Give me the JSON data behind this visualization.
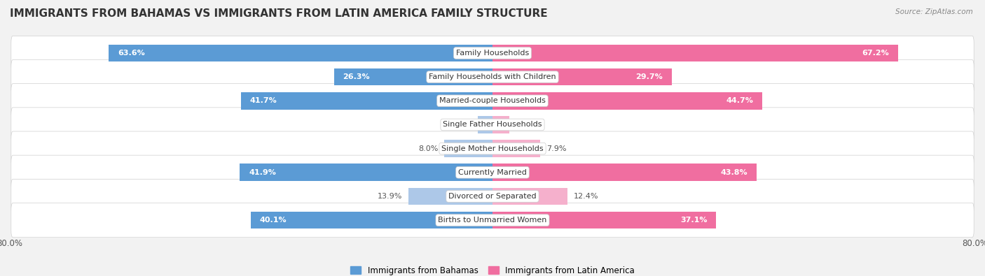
{
  "title": "IMMIGRANTS FROM BAHAMAS VS IMMIGRANTS FROM LATIN AMERICA FAMILY STRUCTURE",
  "source": "Source: ZipAtlas.com",
  "categories": [
    "Family Households",
    "Family Households with Children",
    "Married-couple Households",
    "Single Father Households",
    "Single Mother Households",
    "Currently Married",
    "Divorced or Separated",
    "Births to Unmarried Women"
  ],
  "bahamas_values": [
    63.6,
    26.3,
    41.7,
    2.4,
    8.0,
    41.9,
    13.9,
    40.1
  ],
  "latin_values": [
    67.2,
    29.7,
    44.7,
    2.8,
    7.9,
    43.8,
    12.4,
    37.1
  ],
  "bahamas_color_dark": "#5b9bd5",
  "bahamas_color_light": "#adc8e8",
  "latin_color_dark": "#f06ea0",
  "latin_color_light": "#f5b0cc",
  "axis_max": 80.0,
  "bg_color": "#f2f2f2",
  "row_bg_color": "#ffffff",
  "title_fontsize": 11,
  "label_fontsize": 8,
  "value_fontsize": 8,
  "tick_fontsize": 8.5,
  "legend_fontsize": 8.5,
  "dark_threshold": 20.0
}
